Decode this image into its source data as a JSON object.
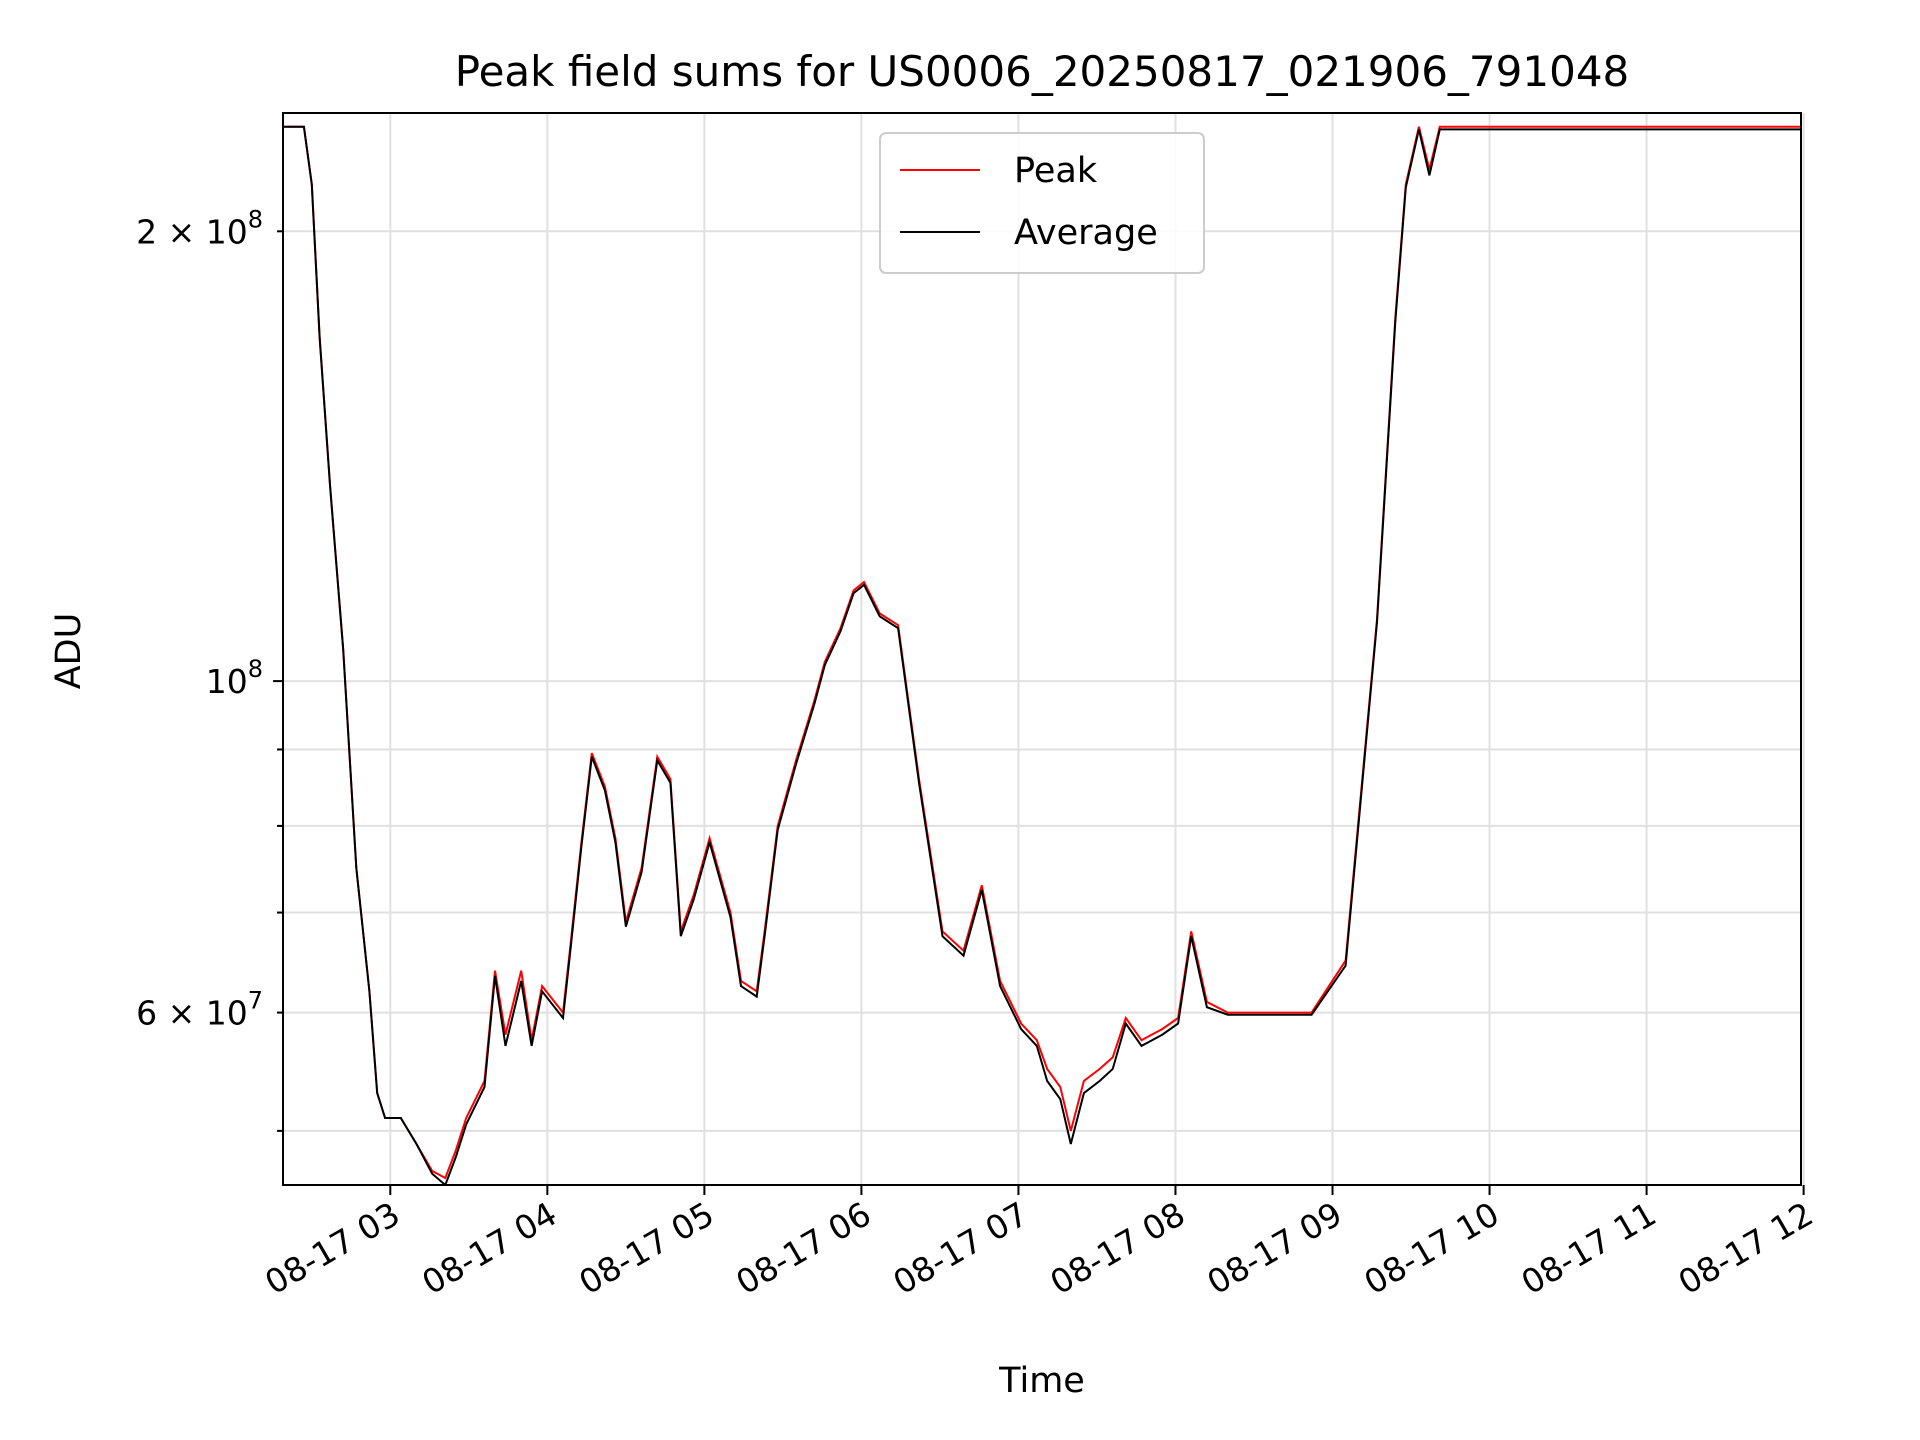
{
  "chart_data": {
    "type": "line",
    "title": "Peak field sums for US0006_20250817_021906_791048",
    "xlabel": "Time",
    "ylabel": "ADU",
    "y_scale": "log",
    "grid": true,
    "legend_position": "top-center",
    "xlim": [
      "2025-08-17 02:19",
      "2025-08-17 11:59"
    ],
    "ylim": [
      46000000,
      240000000
    ],
    "x_ticks": [
      {
        "value": "2025-08-17 03:00",
        "label": "08-17 03"
      },
      {
        "value": "2025-08-17 04:00",
        "label": "08-17 04"
      },
      {
        "value": "2025-08-17 05:00",
        "label": "08-17 05"
      },
      {
        "value": "2025-08-17 06:00",
        "label": "08-17 06"
      },
      {
        "value": "2025-08-17 07:00",
        "label": "08-17 07"
      },
      {
        "value": "2025-08-17 08:00",
        "label": "08-17 08"
      },
      {
        "value": "2025-08-17 09:00",
        "label": "08-17 09"
      },
      {
        "value": "2025-08-17 10:00",
        "label": "08-17 10"
      },
      {
        "value": "2025-08-17 11:00",
        "label": "08-17 11"
      },
      {
        "value": "2025-08-17 12:00",
        "label": "08-17 12"
      }
    ],
    "y_ticks_major": [
      {
        "value": 100000000,
        "label_base": "10",
        "label_exp": "8"
      }
    ],
    "y_ticks_minor": [
      {
        "value": 60000000,
        "label_base": "6 × 10",
        "label_exp": "7"
      },
      {
        "value": 70000000,
        "label_base": "",
        "label_exp": ""
      },
      {
        "value": 80000000,
        "label_base": "",
        "label_exp": ""
      },
      {
        "value": 90000000,
        "label_base": "",
        "label_exp": ""
      },
      {
        "value": 200000000,
        "label_base": "2 × 10",
        "label_exp": "8"
      },
      {
        "value": 50000000,
        "label_base": "",
        "label_exp": ""
      }
    ],
    "series": [
      {
        "name": "Peak",
        "color": "#ff0000",
        "x": [
          "2025-08-17 02:19",
          "2025-08-17 02:27",
          "2025-08-17 02:30",
          "2025-08-17 02:33",
          "2025-08-17 02:37",
          "2025-08-17 02:42",
          "2025-08-17 02:47",
          "2025-08-17 02:52",
          "2025-08-17 02:55",
          "2025-08-17 02:58",
          "2025-08-17 03:04",
          "2025-08-17 03:10",
          "2025-08-17 03:16",
          "2025-08-17 03:21",
          "2025-08-17 03:25",
          "2025-08-17 03:29",
          "2025-08-17 03:36",
          "2025-08-17 03:40",
          "2025-08-17 03:44",
          "2025-08-17 03:50",
          "2025-08-17 03:54",
          "2025-08-17 03:58",
          "2025-08-17 04:06",
          "2025-08-17 04:09",
          "2025-08-17 04:13",
          "2025-08-17 04:17",
          "2025-08-17 04:22",
          "2025-08-17 04:26",
          "2025-08-17 04:30",
          "2025-08-17 04:36",
          "2025-08-17 04:42",
          "2025-08-17 04:47",
          "2025-08-17 04:51",
          "2025-08-17 04:56",
          "2025-08-17 05:02",
          "2025-08-17 05:10",
          "2025-08-17 05:14",
          "2025-08-17 05:20",
          "2025-08-17 05:23",
          "2025-08-17 05:28",
          "2025-08-17 05:35",
          "2025-08-17 05:42",
          "2025-08-17 05:46",
          "2025-08-17 05:52",
          "2025-08-17 05:57",
          "2025-08-17 06:01",
          "2025-08-17 06:07",
          "2025-08-17 06:14",
          "2025-08-17 06:22",
          "2025-08-17 06:31",
          "2025-08-17 06:39",
          "2025-08-17 06:46",
          "2025-08-17 06:53",
          "2025-08-17 07:01",
          "2025-08-17 07:07",
          "2025-08-17 07:11",
          "2025-08-17 07:16",
          "2025-08-17 07:20",
          "2025-08-17 07:25",
          "2025-08-17 07:31",
          "2025-08-17 07:36",
          "2025-08-17 07:41",
          "2025-08-17 07:47",
          "2025-08-17 07:55",
          "2025-08-17 08:01",
          "2025-08-17 08:06",
          "2025-08-17 08:12",
          "2025-08-17 08:20",
          "2025-08-17 08:30",
          "2025-08-17 08:40",
          "2025-08-17 08:46",
          "2025-08-17 08:52",
          "2025-08-17 09:05",
          "2025-08-17 09:17",
          "2025-08-17 09:24",
          "2025-08-17 09:28",
          "2025-08-17 09:33",
          "2025-08-17 09:37",
          "2025-08-17 09:41",
          "2025-08-17 09:47",
          "2025-08-17 10:00",
          "2025-08-17 10:30",
          "2025-08-17 10:54",
          "2025-08-17 11:05",
          "2025-08-17 11:13",
          "2025-08-17 11:19",
          "2025-08-17 11:23",
          "2025-08-17 11:28",
          "2025-08-17 11:32",
          "2025-08-17 11:38",
          "2025-08-17 11:47",
          "2025-08-17 11:52",
          "2025-08-17 11:56",
          "2025-08-17 11:59"
        ],
        "y": [
          235000000,
          235000000,
          215000000,
          170000000,
          135000000,
          105000000,
          75000000,
          62000000,
          53000000,
          51000000,
          51000000,
          49000000,
          47000000,
          46500000,
          48500000,
          51000000,
          54000000,
          64000000,
          58000000,
          64000000,
          57500000,
          62500000,
          60000000,
          67000000,
          78000000,
          89500000,
          85000000,
          78500000,
          69000000,
          75000000,
          89000000,
          86000000,
          68000000,
          72000000,
          78500000,
          70000000,
          63000000,
          62000000,
          68000000,
          80000000,
          88500000,
          97000000,
          103000000,
          108500000,
          115000000,
          116500000,
          111000000,
          109000000,
          86000000,
          68000000,
          66000000,
          73000000,
          63000000,
          59000000,
          57500000,
          55000000,
          53500000,
          50000000,
          54000000,
          55000000,
          56000000,
          59500000,
          57500000,
          58500000,
          59500000,
          68000000,
          61000000,
          60000000,
          60000000,
          60000000,
          60000000,
          60000000,
          65000000,
          110000000,
          175000000,
          215000000,
          235000000,
          220000000,
          235000000,
          235000000,
          235000000,
          235000000,
          235000000,
          235000000,
          235000000,
          235000000,
          235000000,
          235000000,
          235000000,
          235000000,
          235000000,
          235000000,
          235000000,
          235000000
        ]
      },
      {
        "name": "Average",
        "color": "#000000",
        "x": [
          "2025-08-17 02:19",
          "2025-08-17 02:27",
          "2025-08-17 02:30",
          "2025-08-17 02:33",
          "2025-08-17 02:37",
          "2025-08-17 02:42",
          "2025-08-17 02:47",
          "2025-08-17 02:52",
          "2025-08-17 02:55",
          "2025-08-17 02:58",
          "2025-08-17 03:04",
          "2025-08-17 03:10",
          "2025-08-17 03:16",
          "2025-08-17 03:21",
          "2025-08-17 03:25",
          "2025-08-17 03:29",
          "2025-08-17 03:36",
          "2025-08-17 03:40",
          "2025-08-17 03:44",
          "2025-08-17 03:50",
          "2025-08-17 03:54",
          "2025-08-17 03:58",
          "2025-08-17 04:06",
          "2025-08-17 04:09",
          "2025-08-17 04:13",
          "2025-08-17 04:17",
          "2025-08-17 04:22",
          "2025-08-17 04:26",
          "2025-08-17 04:30",
          "2025-08-17 04:36",
          "2025-08-17 04:42",
          "2025-08-17 04:47",
          "2025-08-17 04:51",
          "2025-08-17 04:56",
          "2025-08-17 05:02",
          "2025-08-17 05:10",
          "2025-08-17 05:14",
          "2025-08-17 05:20",
          "2025-08-17 05:23",
          "2025-08-17 05:28",
          "2025-08-17 05:35",
          "2025-08-17 05:42",
          "2025-08-17 05:46",
          "2025-08-17 05:52",
          "2025-08-17 05:57",
          "2025-08-17 06:01",
          "2025-08-17 06:07",
          "2025-08-17 06:14",
          "2025-08-17 06:22",
          "2025-08-17 06:31",
          "2025-08-17 06:39",
          "2025-08-17 06:46",
          "2025-08-17 06:53",
          "2025-08-17 07:01",
          "2025-08-17 07:07",
          "2025-08-17 07:11",
          "2025-08-17 07:16",
          "2025-08-17 07:20",
          "2025-08-17 07:25",
          "2025-08-17 07:31",
          "2025-08-17 07:36",
          "2025-08-17 07:41",
          "2025-08-17 07:47",
          "2025-08-17 07:55",
          "2025-08-17 08:01",
          "2025-08-17 08:06",
          "2025-08-17 08:12",
          "2025-08-17 08:20",
          "2025-08-17 08:30",
          "2025-08-17 08:40",
          "2025-08-17 08:46",
          "2025-08-17 08:52",
          "2025-08-17 09:05",
          "2025-08-17 09:17",
          "2025-08-17 09:24",
          "2025-08-17 09:28",
          "2025-08-17 09:33",
          "2025-08-17 09:37",
          "2025-08-17 09:41",
          "2025-08-17 09:47",
          "2025-08-17 10:00",
          "2025-08-17 10:30",
          "2025-08-17 10:54",
          "2025-08-17 11:05",
          "2025-08-17 11:13",
          "2025-08-17 11:19",
          "2025-08-17 11:23",
          "2025-08-17 11:28",
          "2025-08-17 11:32",
          "2025-08-17 11:38",
          "2025-08-17 11:47",
          "2025-08-17 11:52",
          "2025-08-17 11:56",
          "2025-08-17 11:59"
        ],
        "y": [
          235000000,
          235000000,
          215000000,
          170000000,
          135000000,
          105000000,
          75000000,
          62000000,
          53000000,
          51000000,
          51000000,
          49000000,
          46800000,
          46000000,
          48000000,
          50500000,
          53500000,
          63500000,
          57000000,
          63000000,
          57000000,
          62000000,
          59500000,
          66500000,
          77500000,
          89000000,
          84500000,
          78000000,
          68500000,
          74500000,
          88500000,
          85500000,
          67500000,
          71500000,
          78000000,
          69500000,
          62500000,
          61500000,
          67500000,
          79500000,
          88000000,
          96500000,
          102500000,
          108000000,
          114500000,
          116000000,
          110500000,
          108500000,
          85500000,
          67500000,
          65500000,
          72500000,
          62500000,
          58500000,
          57000000,
          54000000,
          52500000,
          49000000,
          53000000,
          54000000,
          55000000,
          59000000,
          57000000,
          58000000,
          59000000,
          67500000,
          60500000,
          59800000,
          59800000,
          59800000,
          59800000,
          59800000,
          64500000,
          109500000,
          174000000,
          214000000,
          234000000,
          218000000,
          234000000,
          234000000,
          234000000,
          234000000,
          234000000,
          234000000,
          234000000,
          234000000,
          234000000,
          234000000,
          234000000,
          234000000,
          234000000,
          234000000,
          234000000,
          234000000
        ]
      }
    ]
  }
}
